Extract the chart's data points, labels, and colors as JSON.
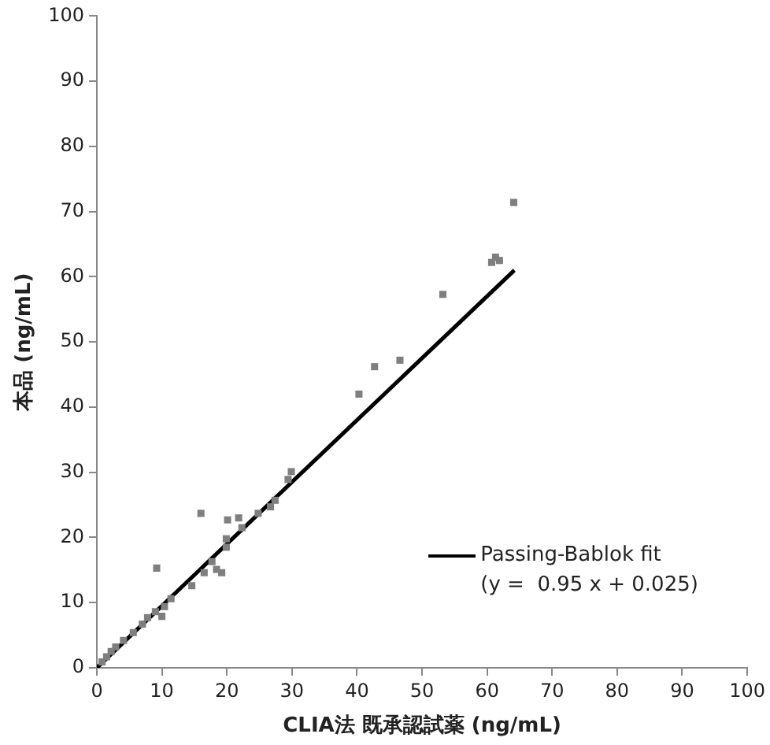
{
  "chart_data": {
    "type": "scatter",
    "xlabel": "CLIA法 既承認試薬 (ng/mL)",
    "ylabel": "本品 (ng/mL)",
    "xlim": [
      0,
      100
    ],
    "ylim": [
      0,
      100
    ],
    "xticks": [
      0,
      10,
      20,
      30,
      40,
      50,
      60,
      70,
      80,
      90,
      100
    ],
    "yticks": [
      0,
      10,
      20,
      30,
      40,
      50,
      60,
      70,
      80,
      90,
      100
    ],
    "grid": false,
    "legend": "bottom right",
    "annotations": [
      "(y =  0.95 x + 0.025)"
    ],
    "series": [
      {
        "type": "scatter",
        "color": "#7f7f7f",
        "marker": "square",
        "x": [
          64.1,
          61.3,
          61.9,
          60.7,
          53.2,
          46.6,
          42.7,
          40.3,
          29.9,
          29.4,
          16.0,
          20.1,
          21.8,
          9.2,
          19.9,
          19.9,
          26.7,
          27.4,
          24.8,
          22.3,
          17.7,
          18.4,
          19.2,
          16.5,
          14.6,
          11.4,
          10.4,
          10.0,
          9.0,
          7.8,
          7.0,
          5.6,
          4.1,
          2.9,
          2.2,
          1.5,
          0.8
        ],
        "values": [
          71.4,
          63.0,
          62.5,
          62.2,
          57.3,
          47.2,
          46.2,
          42.0,
          30.1,
          28.9,
          23.7,
          22.7,
          23.0,
          15.3,
          19.8,
          18.5,
          24.7,
          25.7,
          23.7,
          21.5,
          16.3,
          15.1,
          14.6,
          14.6,
          12.6,
          10.6,
          9.4,
          7.9,
          8.6,
          7.7,
          6.7,
          5.4,
          4.2,
          3.2,
          2.5,
          1.7,
          0.9
        ]
      },
      {
        "type": "line",
        "name": "Passing-Bablok fit",
        "color": "#000000",
        "marker": "none",
        "line_style": "solid",
        "x": [
          0,
          64.2
        ],
        "values": [
          0,
          61.0
        ]
      }
    ]
  }
}
